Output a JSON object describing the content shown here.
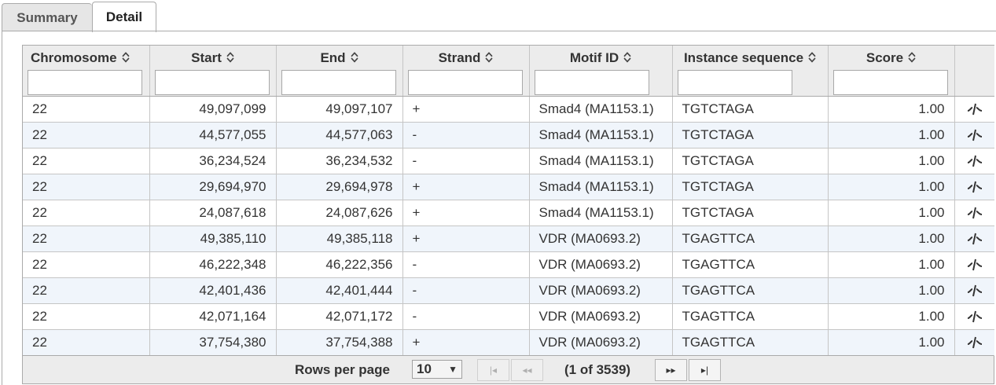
{
  "tabs": [
    {
      "label": "Summary",
      "active": false
    },
    {
      "label": "Detail",
      "active": true
    }
  ],
  "table": {
    "columns": [
      {
        "label": "Chromosome",
        "sort_icon": "sort-updown-icon"
      },
      {
        "label": "Start",
        "sort_icon": "sort-updown-icon"
      },
      {
        "label": "End",
        "sort_icon": "sort-updown-icon"
      },
      {
        "label": "Strand",
        "sort_icon": "sort-updown-icon"
      },
      {
        "label": "Motif ID",
        "sort_icon": "sort-updown-icon"
      },
      {
        "label": "Instance sequence",
        "sort_icon": "sort-updown-icon"
      },
      {
        "label": "Score",
        "sort_icon": "sort-updown-icon"
      }
    ],
    "filters": [
      "",
      "",
      "",
      "",
      "",
      "",
      ""
    ],
    "row_action_icon": "motif-logo-icon",
    "rows": [
      {
        "chromosome": "22",
        "start": "49,097,099",
        "end": "49,097,107",
        "strand": "+",
        "motif": "Smad4 (MA1153.1)",
        "sequence": "TGTCTAGA",
        "score": "1.00"
      },
      {
        "chromosome": "22",
        "start": "44,577,055",
        "end": "44,577,063",
        "strand": "-",
        "motif": "Smad4 (MA1153.1)",
        "sequence": "TGTCTAGA",
        "score": "1.00"
      },
      {
        "chromosome": "22",
        "start": "36,234,524",
        "end": "36,234,532",
        "strand": "-",
        "motif": "Smad4 (MA1153.1)",
        "sequence": "TGTCTAGA",
        "score": "1.00"
      },
      {
        "chromosome": "22",
        "start": "29,694,970",
        "end": "29,694,978",
        "strand": "+",
        "motif": "Smad4 (MA1153.1)",
        "sequence": "TGTCTAGA",
        "score": "1.00"
      },
      {
        "chromosome": "22",
        "start": "24,087,618",
        "end": "24,087,626",
        "strand": "+",
        "motif": "Smad4 (MA1153.1)",
        "sequence": "TGTCTAGA",
        "score": "1.00"
      },
      {
        "chromosome": "22",
        "start": "49,385,110",
        "end": "49,385,118",
        "strand": "+",
        "motif": "VDR (MA0693.2)",
        "sequence": "TGAGTTCA",
        "score": "1.00"
      },
      {
        "chromosome": "22",
        "start": "46,222,348",
        "end": "46,222,356",
        "strand": "-",
        "motif": "VDR (MA0693.2)",
        "sequence": "TGAGTTCA",
        "score": "1.00"
      },
      {
        "chromosome": "22",
        "start": "42,401,436",
        "end": "42,401,444",
        "strand": "-",
        "motif": "VDR (MA0693.2)",
        "sequence": "TGAGTTCA",
        "score": "1.00"
      },
      {
        "chromosome": "22",
        "start": "42,071,164",
        "end": "42,071,172",
        "strand": "-",
        "motif": "VDR (MA0693.2)",
        "sequence": "TGAGTTCA",
        "score": "1.00"
      },
      {
        "chromosome": "22",
        "start": "37,754,380",
        "end": "37,754,388",
        "strand": "+",
        "motif": "VDR (MA0693.2)",
        "sequence": "TGAGTTCA",
        "score": "1.00"
      }
    ]
  },
  "paginator": {
    "rows_per_page_label": "Rows per page",
    "rows_per_page_value": "10",
    "page_report": "(1 of 3539)",
    "first_icon": "first-page-icon",
    "prev_icon": "prev-page-icon",
    "next_icon": "next-page-icon",
    "last_icon": "last-page-icon"
  }
}
